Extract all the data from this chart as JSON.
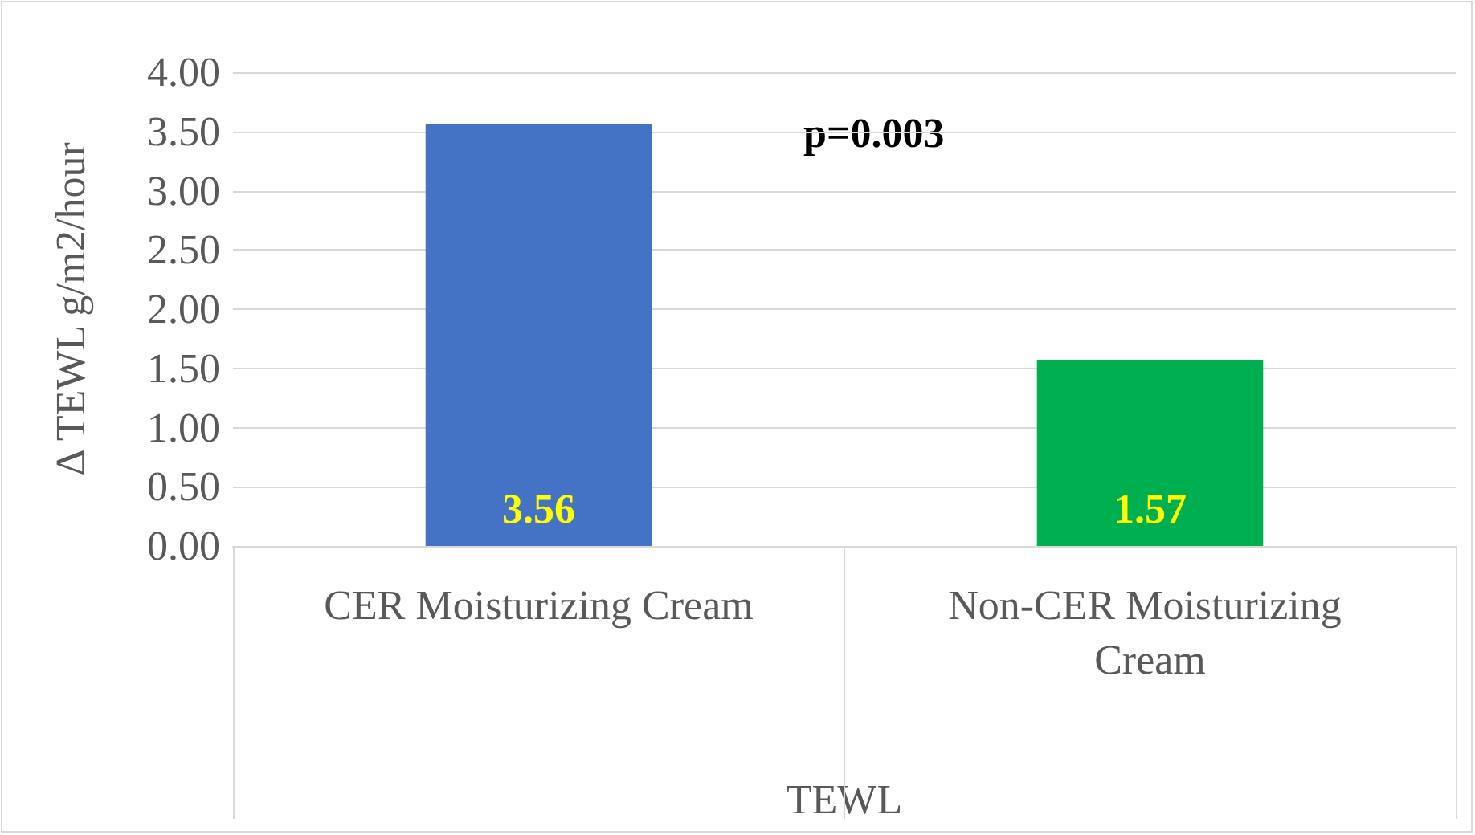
{
  "chart_data": {
    "type": "bar",
    "ylabel": "Δ TEWL g/m2/hour",
    "xlabel": "TEWL",
    "categories": [
      "CER Moisturizing Cream",
      "Non-CER Moisturizing Cream"
    ],
    "values": [
      3.56,
      1.57
    ],
    "colors": [
      "#4472c4",
      "#00b050"
    ],
    "ylim": [
      0,
      4
    ],
    "yticks": [
      {
        "value": 0,
        "label": "0.00"
      },
      {
        "value": 0.5,
        "label": "0.50"
      },
      {
        "value": 1,
        "label": "1.00"
      },
      {
        "value": 1.5,
        "label": "1.50"
      },
      {
        "value": 2,
        "label": "2.00"
      },
      {
        "value": 2.5,
        "label": "2.50"
      },
      {
        "value": 3,
        "label": "3.00"
      },
      {
        "value": 3.5,
        "label": "3.50"
      },
      {
        "value": 4,
        "label": "4.00"
      }
    ],
    "grid": "y",
    "data_labels": true,
    "annotations": [
      "p=0.003"
    ]
  }
}
